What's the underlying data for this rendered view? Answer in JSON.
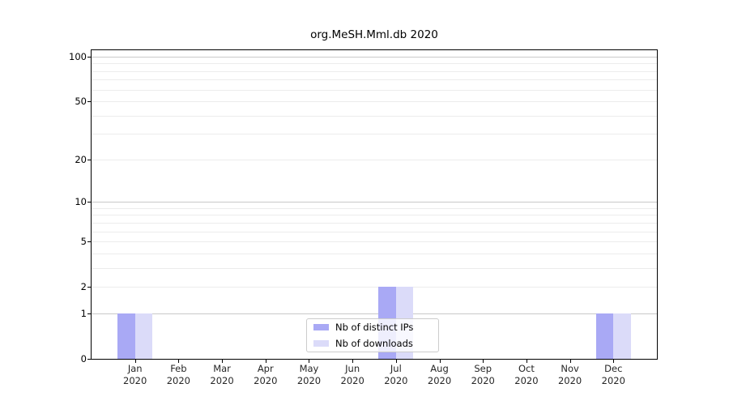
{
  "title": "org.MeSH.Mml.db 2020",
  "colors": {
    "bar_distinct_ips": "#a9a9f5",
    "bar_downloads": "#dbdbf9",
    "grid_major": "#c9c9c9",
    "grid_minor": "#ececec",
    "axis": "#000000",
    "legend_border": "#cccccc"
  },
  "chart_data": {
    "type": "bar",
    "title": "org.MeSH.Mml.db 2020",
    "categories": [
      "Jan",
      "Feb",
      "Mar",
      "Apr",
      "May",
      "Jun",
      "Jul",
      "Aug",
      "Sep",
      "Oct",
      "Nov",
      "Dec"
    ],
    "category_year": "2020",
    "series": [
      {
        "name": "Nb of distinct IPs",
        "color": "#a9a9f5",
        "values": [
          1,
          0,
          0,
          0,
          0,
          0,
          2,
          0,
          0,
          0,
          0,
          1
        ]
      },
      {
        "name": "Nb of downloads",
        "color": "#dbdbf9",
        "values": [
          1,
          0,
          0,
          0,
          0,
          0,
          2,
          0,
          0,
          0,
          0,
          1
        ]
      }
    ],
    "xlabel": "",
    "ylabel": "",
    "yscale": "log1p",
    "ylim": [
      0,
      110
    ],
    "ytick_labels": [
      0,
      1,
      2,
      5,
      10,
      20,
      50,
      100
    ],
    "major_gridlines": [
      1,
      10,
      100
    ],
    "minor_gridlines": [
      2,
      3,
      4,
      5,
      6,
      7,
      8,
      9,
      20,
      30,
      40,
      50,
      60,
      70,
      80,
      90
    ],
    "grid": true,
    "legend_position": "lower-center-inside"
  }
}
